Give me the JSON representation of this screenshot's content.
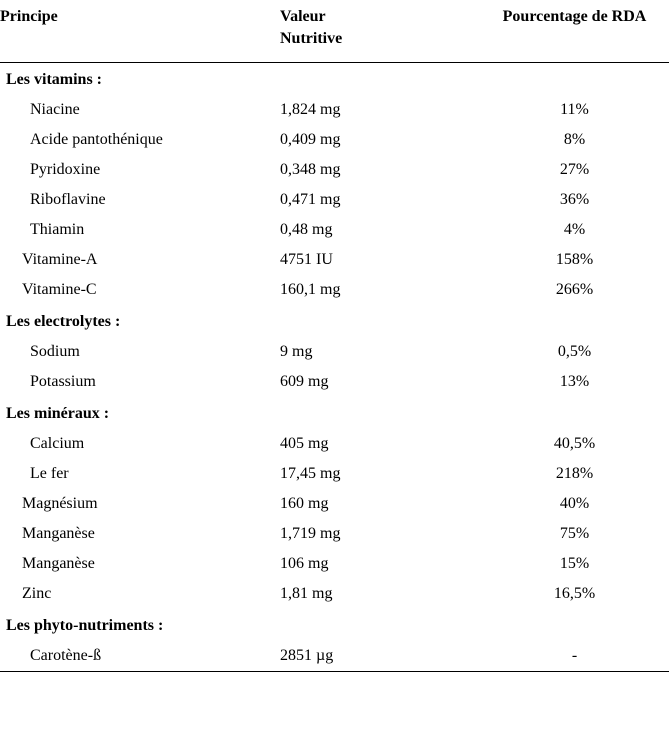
{
  "header": {
    "principe": "Principe",
    "valeur1": "Valeur",
    "valeur2": "Nutritive",
    "rda": "Pourcentage de RDA"
  },
  "sections": {
    "vitamins": {
      "title": "Les vitamins :",
      "rows": [
        {
          "name": "Niacine",
          "value": "1,824 mg",
          "rda": "11%",
          "indent": "more"
        },
        {
          "name": "Acide pantothénique",
          "value": "0,409 mg",
          "rda": "8%",
          "indent": "more"
        },
        {
          "name": "Pyridoxine",
          "value": "0,348 mg",
          "rda": "27%",
          "indent": "more"
        },
        {
          "name": "Riboflavine",
          "value": "0,471 mg",
          "rda": "36%",
          "indent": "more"
        },
        {
          "name": "Thiamin",
          "value": "0,48 mg",
          "rda": "4%",
          "indent": "more"
        },
        {
          "name": "Vitamine-A",
          "value": "4751 IU",
          "rda": "158%",
          "indent": "less"
        },
        {
          "name": "Vitamine-C",
          "value": "160,1 mg",
          "rda": "266%",
          "indent": "less"
        }
      ]
    },
    "electrolytes": {
      "title": "Les electrolytes :",
      "rows": [
        {
          "name": "Sodium",
          "value": "9 mg",
          "rda": "0,5%",
          "indent": "more"
        },
        {
          "name": "Potassium",
          "value": "609 mg",
          "rda": "13%",
          "indent": "more"
        }
      ]
    },
    "minerals": {
      "title": "Les minéraux :",
      "rows": [
        {
          "name": "Calcium",
          "value": "405 mg",
          "rda": "40,5%",
          "indent": "more"
        },
        {
          "name": "Le fer",
          "value": "17,45 mg",
          "rda": "218%",
          "indent": "more"
        },
        {
          "name": "Magnésium",
          "value": "160 mg",
          "rda": "40%",
          "indent": "less"
        },
        {
          "name": "Manganèse",
          "value": "1,719 mg",
          "rda": "75%",
          "indent": "less"
        },
        {
          "name": "Manganèse",
          "value": "106 mg",
          "rda": "15%",
          "indent": "less"
        },
        {
          "name": "Zinc",
          "value": "1,81 mg",
          "rda": "16,5%",
          "indent": "less"
        }
      ]
    },
    "phyto": {
      "title": "Les phyto-nutriments :",
      "rows": [
        {
          "name": "Carotène-ß",
          "value": "2851 µg",
          "rda": "-",
          "indent": "more"
        }
      ]
    }
  }
}
